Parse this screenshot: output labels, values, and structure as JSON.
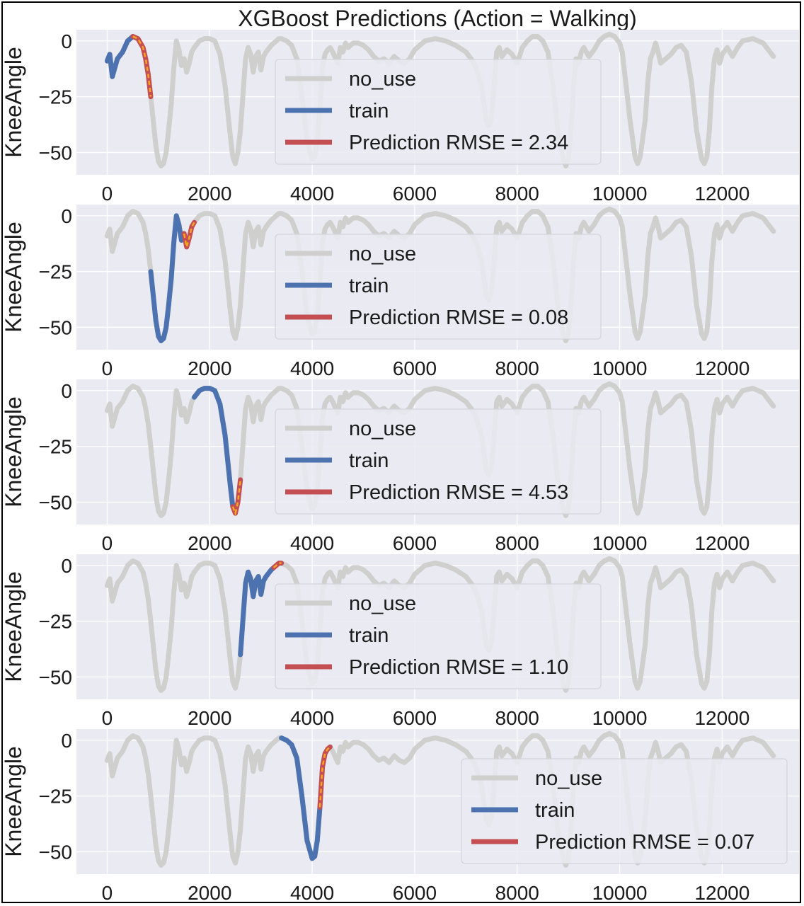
{
  "chart_data": {
    "type": "line",
    "title": "XGBoost Predictions (Action = Walking)",
    "ylabel": "KneeAngle",
    "xlim": [
      -600,
      13500
    ],
    "ylim": [
      -60,
      5
    ],
    "xticks": [
      0,
      2000,
      4000,
      6000,
      8000,
      10000,
      12000
    ],
    "xtick_labels": [
      "0",
      "2000",
      "4000",
      "6000",
      "8000",
      "10000",
      "12000"
    ],
    "yticks": [
      0,
      -25,
      -50
    ],
    "ytick_labels": [
      "0",
      "−25",
      "−50"
    ],
    "grid": true,
    "colors": {
      "background": "#eaeaf2",
      "grid": "#ffffff",
      "no_use": "#cfcfcd",
      "train": "#4c72b0",
      "prediction": "#c44e52",
      "prediction_overlay": "#f5a623"
    },
    "series_names": {
      "no_use": "no_use",
      "train": "train"
    },
    "signal": [
      [
        0,
        -9
      ],
      [
        50,
        -6
      ],
      [
        100,
        -16
      ],
      [
        150,
        -12
      ],
      [
        200,
        -8
      ],
      [
        300,
        -5
      ],
      [
        400,
        0
      ],
      [
        500,
        2
      ],
      [
        600,
        1
      ],
      [
        700,
        -3
      ],
      [
        750,
        -8
      ],
      [
        800,
        -15
      ],
      [
        850,
        -25
      ],
      [
        900,
        -36
      ],
      [
        950,
        -47
      ],
      [
        1000,
        -54
      ],
      [
        1050,
        -56
      ],
      [
        1100,
        -55
      ],
      [
        1150,
        -50
      ],
      [
        1200,
        -40
      ],
      [
        1250,
        -28
      ],
      [
        1300,
        -12
      ],
      [
        1350,
        0
      ],
      [
        1400,
        -4
      ],
      [
        1450,
        -11
      ],
      [
        1500,
        -8
      ],
      [
        1550,
        -14
      ],
      [
        1600,
        -10
      ],
      [
        1650,
        -5
      ],
      [
        1700,
        -3
      ],
      [
        1800,
        0
      ],
      [
        1900,
        1
      ],
      [
        2000,
        1
      ],
      [
        2100,
        0
      ],
      [
        2200,
        -6
      ],
      [
        2300,
        -20
      ],
      [
        2400,
        -42
      ],
      [
        2450,
        -52
      ],
      [
        2500,
        -55
      ],
      [
        2550,
        -50
      ],
      [
        2600,
        -40
      ],
      [
        2650,
        -24
      ],
      [
        2700,
        -8
      ],
      [
        2750,
        -3
      ],
      [
        2800,
        -6
      ],
      [
        2850,
        -14
      ],
      [
        2900,
        -7
      ],
      [
        2950,
        -5
      ],
      [
        3000,
        -13
      ],
      [
        3050,
        -7
      ],
      [
        3100,
        -5
      ],
      [
        3200,
        -2
      ],
      [
        3300,
        0
      ],
      [
        3350,
        1
      ],
      [
        3400,
        1
      ],
      [
        3500,
        0
      ],
      [
        3600,
        -2
      ],
      [
        3700,
        -8
      ],
      [
        3800,
        -25
      ],
      [
        3900,
        -45
      ],
      [
        4000,
        -53
      ],
      [
        4050,
        -52
      ],
      [
        4100,
        -45
      ],
      [
        4150,
        -30
      ],
      [
        4200,
        -12
      ],
      [
        4250,
        -6
      ],
      [
        4300,
        -4
      ],
      [
        4350,
        -3
      ],
      [
        4400,
        -5
      ],
      [
        4500,
        -10
      ],
      [
        4550,
        -3
      ],
      [
        4600,
        -5
      ],
      [
        4650,
        -1
      ],
      [
        4700,
        -3
      ],
      [
        4800,
        -1
      ],
      [
        4900,
        -1
      ],
      [
        5000,
        -2
      ],
      [
        5100,
        -4
      ],
      [
        5200,
        -7
      ],
      [
        5300,
        -9
      ],
      [
        5400,
        -8
      ],
      [
        5500,
        -10
      ],
      [
        5600,
        -7
      ],
      [
        5700,
        -9
      ],
      [
        5800,
        -10
      ],
      [
        5900,
        -8
      ],
      [
        6000,
        -4
      ],
      [
        6100,
        -2
      ],
      [
        6200,
        0
      ],
      [
        6400,
        1
      ],
      [
        6600,
        0
      ],
      [
        6800,
        -2
      ],
      [
        7000,
        -5
      ],
      [
        7100,
        -8
      ],
      [
        7200,
        -12
      ],
      [
        7300,
        -20
      ],
      [
        7400,
        -36
      ],
      [
        7450,
        -38
      ],
      [
        7500,
        -34
      ],
      [
        7550,
        -20
      ],
      [
        7600,
        -5
      ],
      [
        7650,
        -3
      ],
      [
        7700,
        -7
      ],
      [
        7800,
        -4
      ],
      [
        7900,
        -6
      ],
      [
        8000,
        -10
      ],
      [
        8100,
        -3
      ],
      [
        8200,
        0
      ],
      [
        8300,
        2
      ],
      [
        8400,
        2
      ],
      [
        8500,
        0
      ],
      [
        8600,
        -5
      ],
      [
        8700,
        -20
      ],
      [
        8800,
        -42
      ],
      [
        8900,
        -53
      ],
      [
        8950,
        -56
      ],
      [
        9000,
        -53
      ],
      [
        9050,
        -40
      ],
      [
        9100,
        -20
      ],
      [
        9150,
        -8
      ],
      [
        9200,
        -10
      ],
      [
        9250,
        -5
      ],
      [
        9300,
        -3
      ],
      [
        9400,
        -7
      ],
      [
        9500,
        -4
      ],
      [
        9600,
        0
      ],
      [
        9700,
        2
      ],
      [
        9800,
        3
      ],
      [
        9900,
        2
      ],
      [
        10000,
        -1
      ],
      [
        10050,
        -5
      ],
      [
        10100,
        -15
      ],
      [
        10200,
        -35
      ],
      [
        10300,
        -52
      ],
      [
        10350,
        -55
      ],
      [
        10400,
        -52
      ],
      [
        10500,
        -35
      ],
      [
        10550,
        -18
      ],
      [
        10600,
        -8
      ],
      [
        10650,
        -5
      ],
      [
        10700,
        -1
      ],
      [
        10750,
        -5
      ],
      [
        10800,
        -10
      ],
      [
        10900,
        -8
      ],
      [
        11000,
        -6
      ],
      [
        11100,
        -3
      ],
      [
        11200,
        -2
      ],
      [
        11300,
        -5
      ],
      [
        11400,
        -18
      ],
      [
        11500,
        -40
      ],
      [
        11600,
        -53
      ],
      [
        11650,
        -55
      ],
      [
        11700,
        -52
      ],
      [
        11750,
        -40
      ],
      [
        11800,
        -20
      ],
      [
        11850,
        -8
      ],
      [
        11900,
        -4
      ],
      [
        11950,
        -10
      ],
      [
        12000,
        -6
      ],
      [
        12100,
        -3
      ],
      [
        12200,
        -7
      ],
      [
        12300,
        -3
      ],
      [
        12400,
        0
      ],
      [
        12600,
        1
      ],
      [
        12700,
        0
      ],
      [
        12800,
        -1
      ],
      [
        12900,
        -4
      ],
      [
        13000,
        -7
      ]
    ],
    "panels": [
      {
        "train_range": [
          0,
          500
        ],
        "pred_range": [
          500,
          850
        ],
        "legend_loc": "center",
        "legend_labels": {
          "no_use": "no_use",
          "train": "train",
          "prediction": "Prediction RMSE = 2.34"
        }
      },
      {
        "train_range": [
          850,
          1500
        ],
        "pred_range": [
          1500,
          1700
        ],
        "legend_loc": "center",
        "legend_labels": {
          "no_use": "no_use",
          "train": "train",
          "prediction": "Prediction RMSE = 0.08"
        }
      },
      {
        "train_range": [
          1700,
          2450
        ],
        "pred_range": [
          2450,
          2600
        ],
        "legend_loc": "center",
        "legend_labels": {
          "no_use": "no_use",
          "train": "train",
          "prediction": "Prediction RMSE = 4.53"
        }
      },
      {
        "train_range": [
          2600,
          3250
        ],
        "pred_range": [
          3250,
          3400
        ],
        "legend_loc": "center",
        "legend_labels": {
          "no_use": "no_use",
          "train": "train",
          "prediction": "Prediction RMSE = 1.10"
        }
      },
      {
        "train_range": [
          3400,
          4150
        ],
        "pred_range": [
          4150,
          4350
        ],
        "legend_loc": "lower right",
        "legend_labels": {
          "no_use": "no_use",
          "train": "train",
          "prediction": "Prediction RMSE = 0.07"
        }
      }
    ]
  }
}
